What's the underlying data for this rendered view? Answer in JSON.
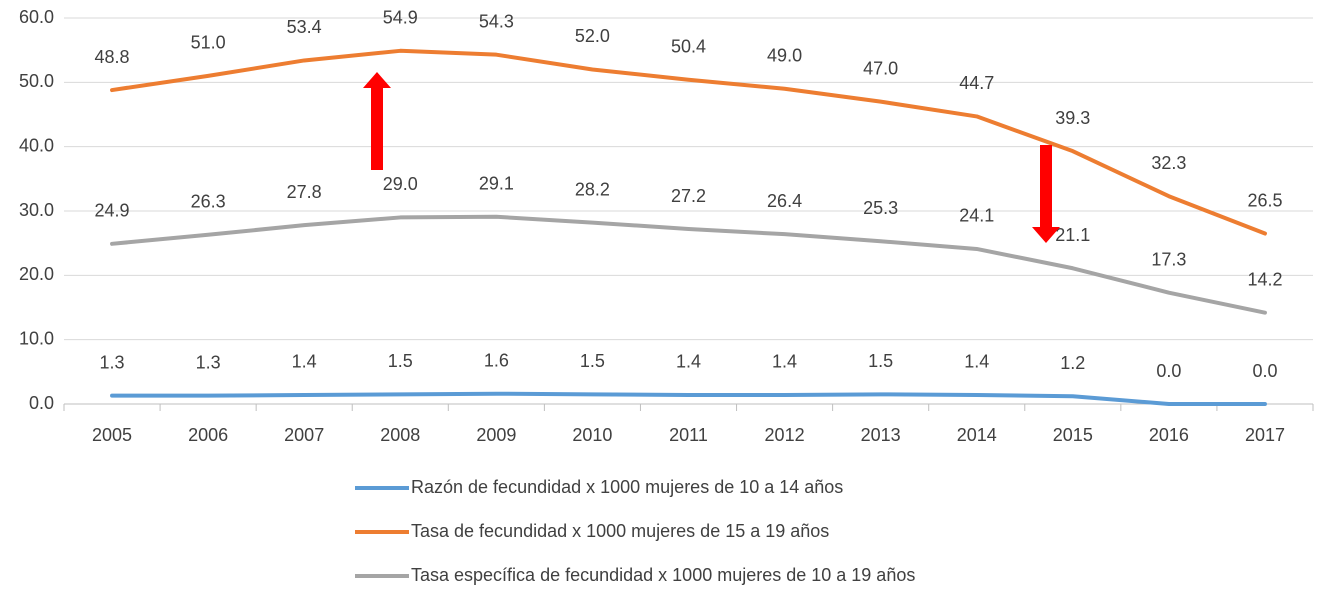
{
  "chart_data": {
    "type": "line",
    "categories": [
      "2005",
      "2006",
      "2007",
      "2008",
      "2009",
      "2010",
      "2011",
      "2012",
      "2013",
      "2014",
      "2015",
      "2016",
      "2017"
    ],
    "series": [
      {
        "name": "Razón de fecundidad x 1000 mujeres de 10 a 14 años",
        "color": "#5b9bd5",
        "values": [
          1.3,
          1.3,
          1.4,
          1.5,
          1.6,
          1.5,
          1.4,
          1.4,
          1.5,
          1.4,
          1.2,
          0.0,
          0.0
        ],
        "value_labels": [
          "1.3",
          "1.3",
          "1.4",
          "1.5",
          "1.6",
          "1.5",
          "1.4",
          "1.4",
          "1.5",
          "1.4",
          "1.2",
          "0.0",
          "0.0"
        ]
      },
      {
        "name": "Tasa de fecundidad x 1000 mujeres de 15 a 19 años",
        "color": "#ed7d31",
        "values": [
          48.8,
          51.0,
          53.4,
          54.9,
          54.3,
          52.0,
          50.4,
          49.0,
          47.0,
          44.7,
          39.3,
          32.3,
          26.5
        ],
        "value_labels": [
          "48.8",
          "51.0",
          "53.4",
          "54.9",
          "54.3",
          "52.0",
          "50.4",
          "49.0",
          "47.0",
          "44.7",
          "39.3",
          "32.3",
          "26.5"
        ]
      },
      {
        "name": "Tasa específica de fecundidad x 1000 mujeres de 10 a 19 años",
        "color": "#a5a5a5",
        "values": [
          24.9,
          26.3,
          27.8,
          29.0,
          29.1,
          28.2,
          27.2,
          26.4,
          25.3,
          24.1,
          21.1,
          17.3,
          14.2
        ],
        "value_labels": [
          "24.9",
          "26.3",
          "27.8",
          "29.0",
          "29.1",
          "28.2",
          "27.2",
          "26.4",
          "25.3",
          "24.1",
          "21.1",
          "17.3",
          "14.2"
        ]
      }
    ],
    "ylim": [
      0,
      60
    ],
    "yticks": [
      {
        "value": 0,
        "label": "0.0"
      },
      {
        "value": 10,
        "label": "10.0"
      },
      {
        "value": 20,
        "label": "20.0"
      },
      {
        "value": 30,
        "label": "30.0"
      },
      {
        "value": 40,
        "label": "40.0"
      },
      {
        "value": 50,
        "label": "50.0"
      },
      {
        "value": 60,
        "label": "60.0"
      }
    ],
    "grid": true,
    "legend": "bottom"
  }
}
